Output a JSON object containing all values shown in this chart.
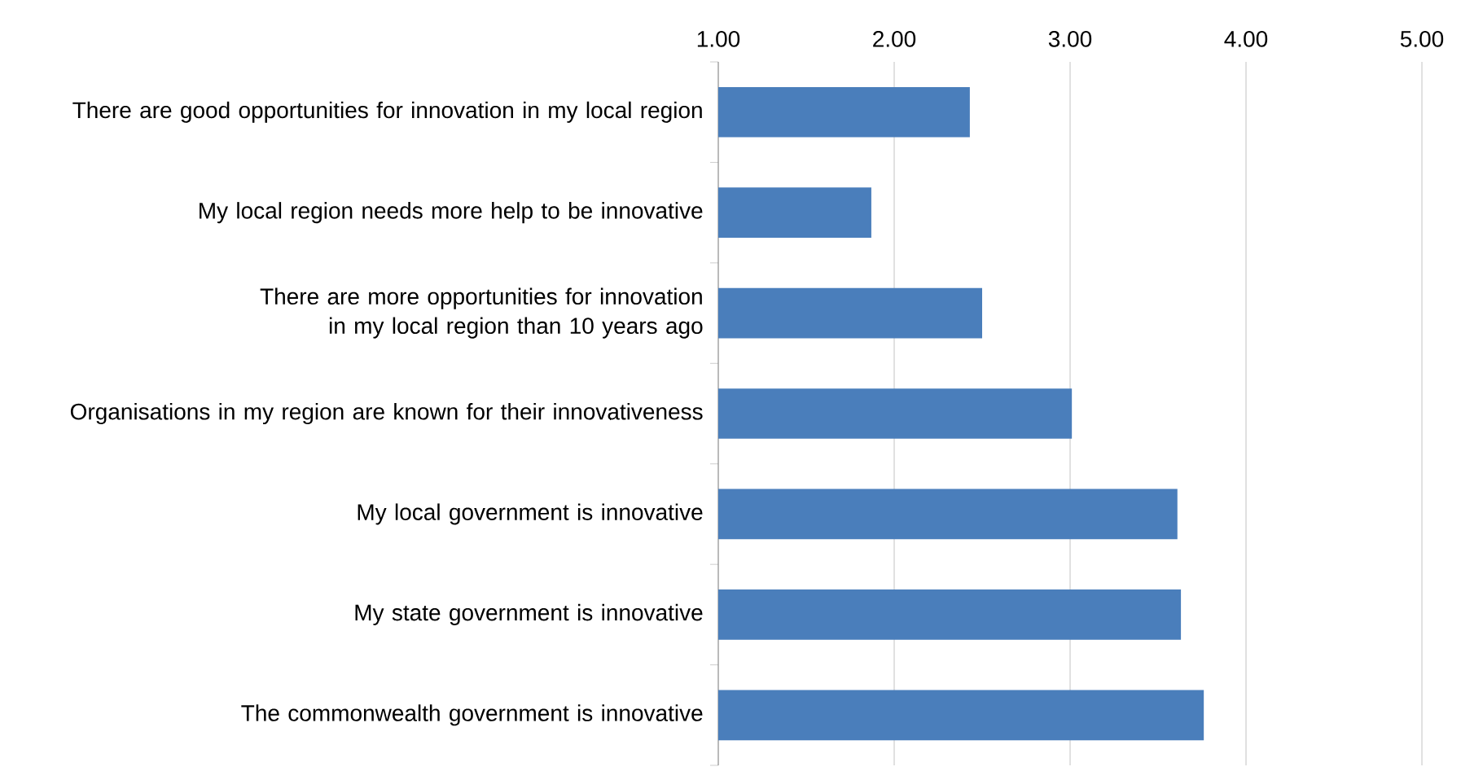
{
  "chart_data": {
    "type": "bar",
    "orientation": "horizontal",
    "categories": [
      "There are good opportunities for innovation in my local region",
      "My local region needs more help to be innovative",
      "There are more opportunities for innovation in my local region than 10 years ago",
      "Organisations in my region are known for their innovativeness",
      "My local government is innovative",
      "My state government is innovative",
      "The commonwealth government is innovative"
    ],
    "values": [
      2.43,
      1.87,
      2.5,
      3.01,
      3.61,
      3.63,
      3.76
    ],
    "color": "#4a7ebb",
    "xlim": [
      1,
      5
    ],
    "xticks": [
      {
        "value": 1,
        "label": "1.00"
      },
      {
        "value": 2,
        "label": "2.00"
      },
      {
        "value": 3,
        "label": "3.00"
      },
      {
        "value": 4,
        "label": "4.00"
      },
      {
        "value": 5,
        "label": "5.00"
      }
    ],
    "grid": "x"
  }
}
